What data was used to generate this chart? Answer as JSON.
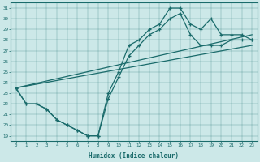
{
  "xlabel": "Humidex (Indice chaleur)",
  "background_color": "#cce8e8",
  "line_color": "#1a6b6b",
  "xlim": [
    -0.5,
    23.5
  ],
  "ylim": [
    18.5,
    31.5
  ],
  "xticks": [
    0,
    1,
    2,
    3,
    4,
    5,
    6,
    7,
    8,
    9,
    10,
    11,
    12,
    13,
    14,
    15,
    16,
    17,
    18,
    19,
    20,
    21,
    22,
    23
  ],
  "yticks": [
    19,
    20,
    21,
    22,
    23,
    24,
    25,
    26,
    27,
    28,
    29,
    30,
    31
  ],
  "series_zigzag1": {
    "x": [
      0,
      1,
      2,
      3,
      4,
      5,
      6,
      7,
      8,
      9,
      10,
      11,
      12,
      13,
      14,
      15,
      16,
      17,
      18,
      19,
      20,
      21,
      22,
      23
    ],
    "y": [
      23.5,
      22.0,
      22.0,
      21.5,
      20.5,
      20.0,
      19.5,
      19.0,
      19.0,
      23.0,
      25.0,
      27.5,
      28.0,
      29.0,
      29.5,
      31.0,
      31.0,
      29.5,
      29.0,
      30.0,
      28.5,
      28.5,
      28.5,
      28.0
    ]
  },
  "series_zigzag2": {
    "x": [
      0,
      1,
      2,
      3,
      4,
      5,
      6,
      7,
      8,
      9,
      10,
      11,
      12,
      13,
      14,
      15,
      16,
      17,
      18,
      19,
      20,
      21,
      22,
      23
    ],
    "y": [
      23.5,
      22.0,
      22.0,
      21.5,
      20.5,
      20.0,
      19.5,
      19.0,
      19.0,
      22.5,
      24.5,
      26.5,
      27.5,
      28.5,
      29.0,
      30.0,
      30.5,
      28.5,
      27.5,
      27.5,
      27.5,
      28.0,
      28.0,
      28.0
    ]
  },
  "series_line1": {
    "x": [
      0,
      23
    ],
    "y": [
      23.5,
      28.5
    ]
  },
  "series_line2": {
    "x": [
      0,
      23
    ],
    "y": [
      23.5,
      27.5
    ]
  }
}
